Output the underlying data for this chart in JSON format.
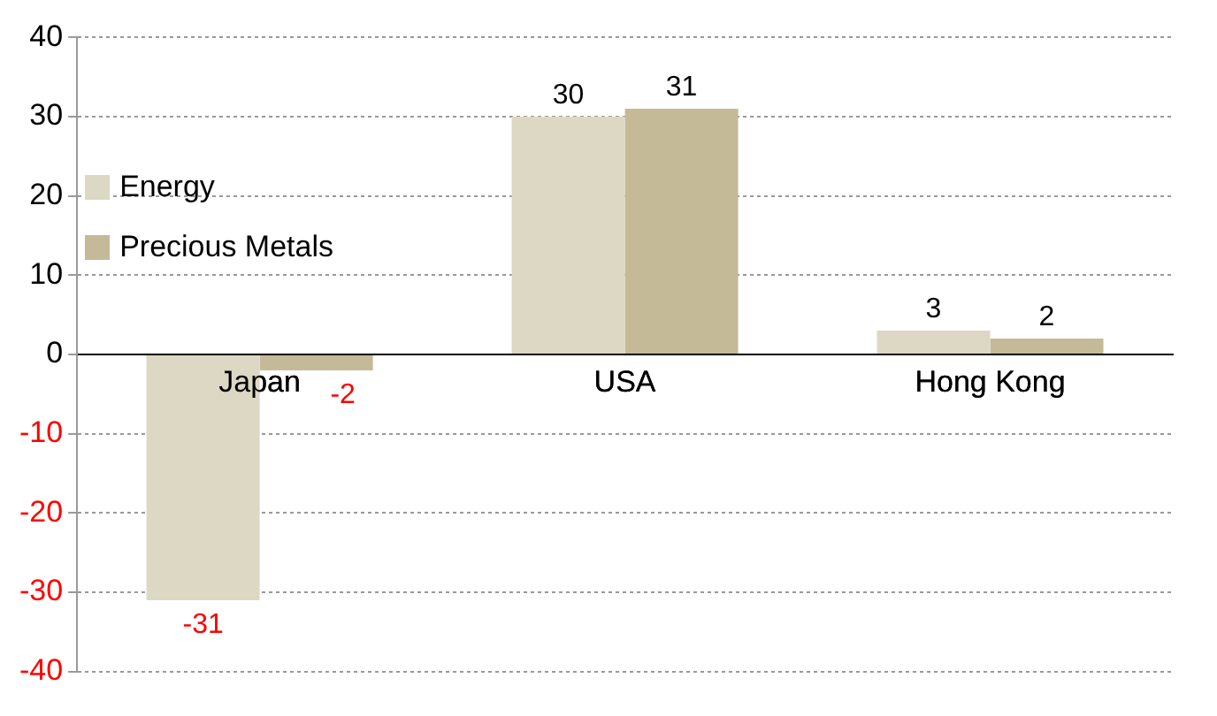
{
  "chart_data": {
    "type": "bar",
    "categories": [
      "Japan",
      "USA",
      "Hong Kong"
    ],
    "series": [
      {
        "name": "Energy",
        "color": "#ddd8c3",
        "values": [
          -31,
          30,
          3
        ]
      },
      {
        "name": "Precious Metals",
        "color": "#c4ba98",
        "values": [
          -2,
          31,
          2
        ]
      }
    ],
    "ylim": [
      -40,
      40
    ],
    "yticks": [
      -40,
      -30,
      -20,
      -10,
      0,
      10,
      20,
      30,
      40
    ],
    "grid": "y",
    "legend": "top left",
    "data_labels": true
  }
}
